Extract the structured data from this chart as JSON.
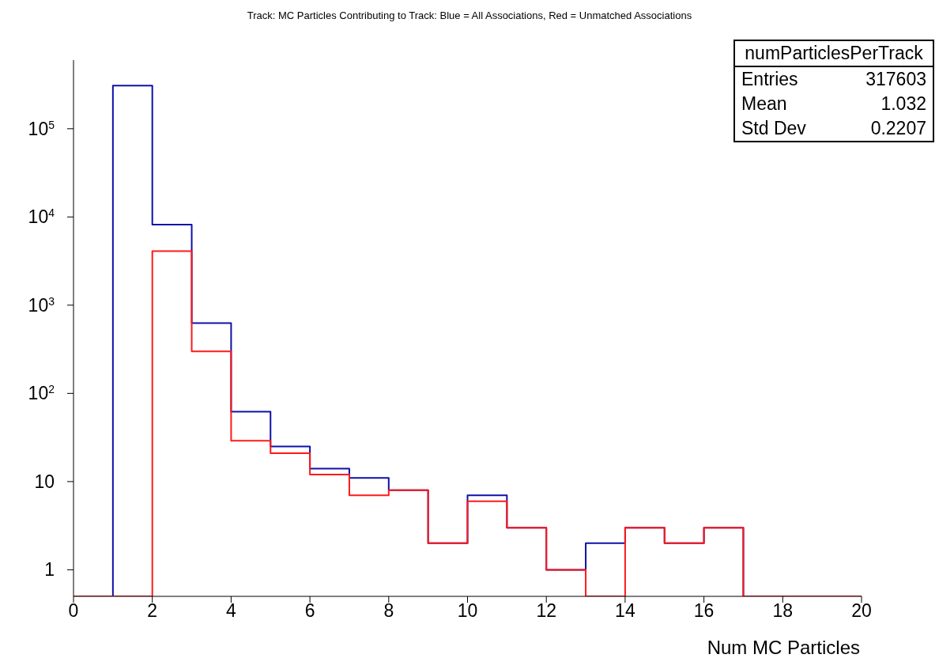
{
  "chart_data": {
    "type": "histogram",
    "title": "Track: MC Particles Contributing to Track: Blue = All Associations, Red = Unmatched Associations",
    "xlabel": "Num MC Particles",
    "bins": [
      0,
      1,
      2,
      3,
      4,
      5,
      6,
      7,
      8,
      9,
      10,
      11,
      12,
      13,
      14,
      15,
      16,
      17,
      18,
      19,
      20
    ],
    "series": [
      {
        "color": "#1010a8",
        "values": [
          null,
          308600,
          8200,
          625,
          62,
          25,
          14,
          11,
          8,
          2,
          7,
          3,
          1,
          2,
          3,
          2,
          3,
          null,
          null,
          null
        ]
      },
      {
        "color": "#ff1a1a",
        "values": [
          null,
          null,
          4100,
          300,
          29,
          21,
          12,
          7,
          8,
          2,
          6,
          3,
          1,
          null,
          3,
          2,
          3,
          null,
          null,
          null
        ]
      }
    ],
    "log": "y",
    "xlim": [
      0,
      20
    ],
    "xticks": [
      0,
      2,
      4,
      6,
      8,
      10,
      12,
      14,
      16,
      18,
      20
    ],
    "ylim": [
      0.5,
      600000
    ],
    "yticks": [
      1,
      10,
      {
        "value": 100,
        "label": "10$^{2}$"
      },
      {
        "value": 1000,
        "label": "10$^{3}$"
      },
      {
        "value": 10000,
        "label": "10$^{4}$"
      },
      {
        "value": 100000,
        "label": "10$^{5}$"
      }
    ],
    "annotations": [
      "numParticlesPerTrack",
      "Entries",
      "317603",
      "Mean",
      "1.032",
      "Std Dev",
      "0.2207"
    ]
  }
}
